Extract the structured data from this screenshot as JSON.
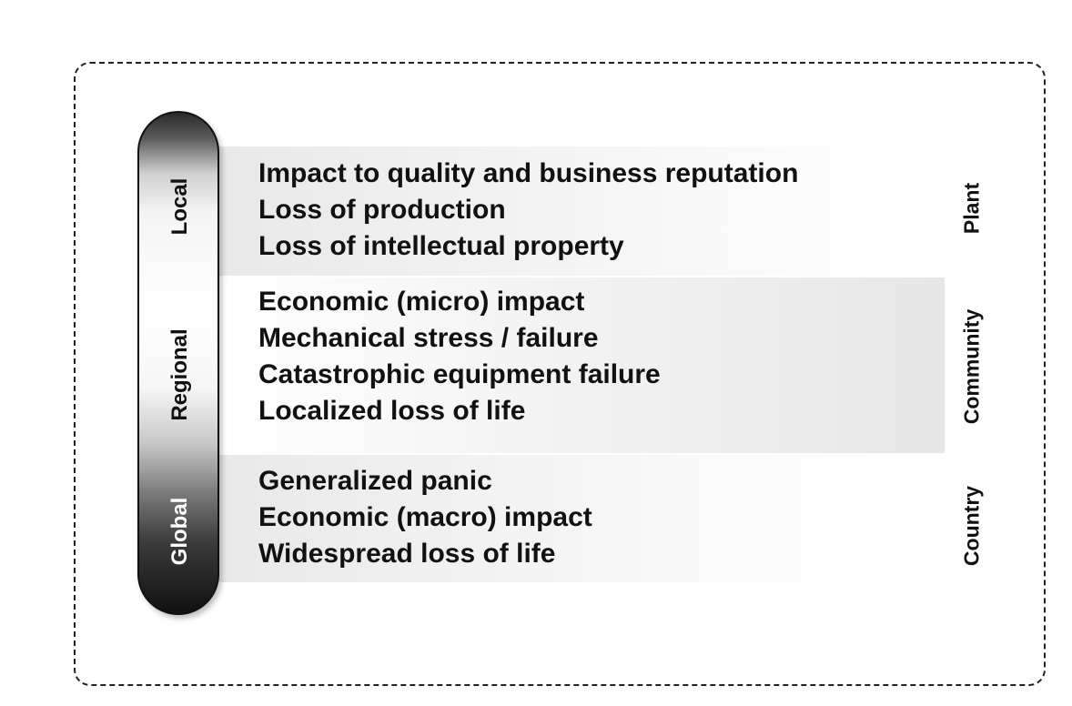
{
  "scale": {
    "labels": [
      "Local",
      "Regional",
      "Global"
    ]
  },
  "bands": [
    {
      "scope": "Plant",
      "items": [
        "Impact to quality and business reputation",
        "Loss of production",
        "Loss of intellectual property"
      ]
    },
    {
      "scope": "Community",
      "items": [
        "Economic (micro) impact",
        "Mechanical stress / failure",
        "Catastrophic equipment failure",
        "Localized loss of life"
      ]
    },
    {
      "scope": "Country",
      "items": [
        "Generalized panic",
        "Economic (macro) impact",
        "Widespread loss of life"
      ]
    }
  ]
}
